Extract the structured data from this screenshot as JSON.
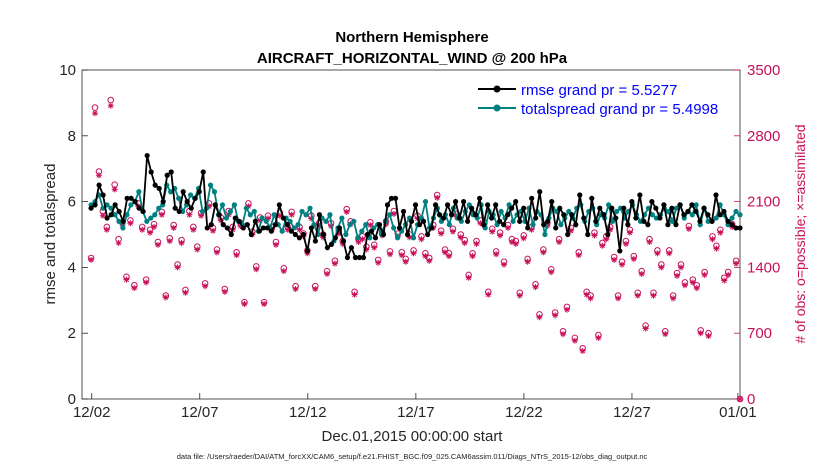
{
  "chart_data": {
    "type": "line",
    "title": "Northern Hemisphere",
    "subtitle": "AIRCRAFT_HORIZONTAL_WIND @ 200 hPa",
    "xlabel": "Dec.01,2015 00:00:00 start",
    "ylabel": "rmse and totalspread",
    "ylabel_right": "# of obs: o=possible; ×=assimilated",
    "xlim": [
      0.55,
      31.0
    ],
    "ylim": [
      0,
      10
    ],
    "ylim_right": [
      0,
      3500
    ],
    "x_ticks": [
      {
        "v": 1,
        "label": "12/02"
      },
      {
        "v": 6,
        "label": "12/07"
      },
      {
        "v": 11,
        "label": "12/12"
      },
      {
        "v": 16,
        "label": "12/17"
      },
      {
        "v": 21,
        "label": "12/22"
      },
      {
        "v": 26,
        "label": "12/27"
      },
      {
        "v": 30.9,
        "label": "01/01"
      }
    ],
    "y_ticks": [
      "0",
      "2",
      "4",
      "6",
      "8",
      "10"
    ],
    "y_ticks_right": [
      "0",
      "700",
      "1400",
      "2100",
      "2800",
      "3500"
    ],
    "legend": [
      "rmse grand pr = 5.5277",
      "totalspread grand pr = 5.4998"
    ],
    "footnote": "data file: /Users/raeder/DAI/ATM_forcXX/CAM6_setup/f.e21.FHIST_BGC.f09_025.CAM6assim.011/Diags_NTrS_2015-12/obs_diag_output.nc",
    "colors": {
      "rmse": "#000000",
      "spread": "#008080",
      "obs": "#c8105a"
    },
    "series": [
      {
        "name": "rmse",
        "values": [
          5.8,
          5.9,
          6.5,
          6.2,
          5.5,
          5.6,
          5.9,
          5.7,
          5.4,
          6.1,
          6.1,
          6.0,
          5.8,
          5.7,
          7.4,
          6.9,
          6.5,
          6.4,
          6.0,
          6.8,
          6.9,
          5.8,
          5.7,
          6.3,
          6.0,
          5.8,
          6.1,
          6.3,
          6.9,
          5.2,
          5.3,
          5.9,
          5.6,
          5.3,
          5.2,
          5.0,
          5.5,
          5.4,
          5.2,
          5.3,
          5.0,
          5.4,
          5.1,
          5.2,
          5.2,
          5.1,
          5.3,
          5.9,
          5.5,
          5.3,
          5.1,
          5.0,
          4.9,
          5.0,
          4.5,
          5.2,
          4.8,
          5.6,
          5.0,
          4.6,
          4.7,
          4.9,
          5.2,
          4.8,
          4.3,
          4.6,
          4.3,
          4.3,
          4.3,
          5.0,
          5.1,
          4.9,
          5.3,
          5.0,
          5.9,
          6.1,
          6.1,
          5.2,
          5.7,
          5.0,
          5.4,
          5.9,
          5.3,
          5.4,
          5.0,
          5.2,
          5.9,
          5.6,
          5.5,
          5.9,
          5.6,
          6.0,
          5.5,
          6.0,
          5.4,
          5.8,
          5.6,
          6.1,
          5.3,
          5.9,
          5.5,
          5.9,
          5.4,
          5.3,
          5.6,
          5.8,
          6.0,
          5.4,
          5.8,
          5.2,
          6.1,
          5.5,
          6.3,
          5.3,
          5.4,
          6.0,
          5.2,
          5.8,
          5.6,
          5.0,
          5.6,
          5.3,
          6.2,
          5.5,
          5.0,
          6.1,
          5.4,
          5.8,
          5.6,
          5.0,
          5.8,
          5.5,
          4.5,
          5.8,
          5.3,
          6.0,
          5.5,
          6.2,
          5.4,
          5.3,
          6.0,
          5.8,
          5.5,
          5.9,
          5.3,
          5.8,
          5.3,
          5.9,
          5.6,
          5.7,
          5.9,
          5.7,
          5.4,
          5.8,
          5.6,
          5.4,
          6.2,
          5.6,
          5.7,
          5.4,
          5.3,
          5.2,
          5.2
        ]
      },
      {
        "name": "totalspread",
        "values": [
          5.9,
          6.0,
          6.2,
          5.8,
          5.9,
          5.8,
          5.6,
          5.4,
          5.2,
          5.6,
          5.9,
          6.0,
          6.3,
          5.7,
          5.4,
          5.5,
          5.6,
          5.8,
          5.9,
          6.5,
          6.3,
          6.4,
          6.1,
          5.7,
          5.9,
          6.2,
          6.1,
          6.4,
          5.7,
          5.8,
          6.5,
          6.3,
          5.6,
          5.9,
          5.5,
          5.7,
          5.9,
          5.4,
          5.3,
          5.8,
          5.6,
          5.7,
          5.1,
          5.5,
          5.4,
          5.2,
          5.6,
          5.3,
          5.1,
          5.5,
          5.4,
          5.2,
          5.3,
          5.7,
          5.6,
          5.8,
          5.3,
          5.0,
          5.5,
          5.4,
          5.6,
          4.8,
          5.2,
          5.5,
          5.0,
          5.3,
          5.4,
          4.9,
          5.1,
          5.3,
          4.9,
          5.2,
          5.3,
          5.0,
          5.4,
          5.6,
          5.2,
          4.9,
          5.1,
          5.3,
          5.5,
          4.9,
          5.3,
          5.5,
          6.0,
          5.2,
          5.5,
          5.8,
          5.4,
          5.6,
          5.3,
          5.8,
          5.5,
          5.4,
          5.7,
          5.9,
          5.6,
          5.5,
          5.9,
          5.2,
          5.7,
          5.6,
          5.3,
          5.7,
          5.5,
          5.9,
          5.4,
          5.6,
          5.7,
          5.4,
          5.8,
          5.3,
          5.7,
          5.6,
          5.0,
          5.5,
          5.8,
          5.7,
          5.3,
          5.5,
          5.7,
          5.5,
          5.8,
          5.9,
          5.4,
          5.7,
          5.8,
          5.3,
          5.6,
          5.5,
          5.9,
          5.4,
          5.7,
          5.8,
          5.5,
          5.7,
          5.9,
          5.6,
          5.4,
          5.6,
          5.8,
          5.6,
          5.5,
          5.6,
          5.8,
          5.7,
          5.4,
          5.8,
          5.9,
          5.5,
          5.7,
          5.6,
          5.9,
          5.3,
          5.8,
          5.4,
          5.4,
          5.5,
          5.9,
          5.6,
          5.3,
          5.5,
          5.7,
          5.6
        ]
      },
      {
        "name": "obs_possible",
        "axis": "right",
        "values": [
          1500,
          3100,
          2420,
          2000,
          1830,
          3180,
          2280,
          1700,
          1880,
          1300,
          1900,
          1210,
          2080,
          1830,
          1270,
          1800,
          1860,
          1670,
          1990,
          1100,
          1710,
          1850,
          1430,
          1690,
          1160,
          2000,
          1830,
          1620,
          1980,
          1230,
          2080,
          1820,
          1590,
          1930,
          1170,
          2000,
          1830,
          1560,
          1870,
          1030,
          2080,
          1780,
          1410,
          1930,
          1030,
          1950,
          1830,
          1670,
          1980,
          1390,
          1830,
          1990,
          1200,
          1830,
          1760,
          1580,
          1950,
          1200,
          1870,
          1750,
          1360,
          1870,
          1470,
          1790,
          1680,
          2020,
          1890,
          1140,
          1700,
          1730,
          1620,
          1880,
          1640,
          1480,
          1770,
          1890,
          1570,
          2000,
          1760,
          1560,
          1490,
          1750,
          1580,
          1950,
          1730,
          1550,
          1500,
          1850,
          2170,
          1790,
          1590,
          1550,
          1810,
          1970,
          1750,
          1690,
          1320,
          1550,
          1680,
          1900,
          1870,
          1140,
          1810,
          1570,
          1770,
          1460,
          1850,
          1700,
          1680,
          1130,
          1740,
          1490,
          1830,
          1220,
          900,
          1590,
          1870,
          1380,
          920,
          1700,
          720,
          980,
          1820,
          650,
          1560,
          540,
          1140,
          1100,
          1770,
          680,
          1660,
          1730,
          1830,
          1510,
          1100,
          1460,
          1680,
          1800,
          1520,
          1130,
          1360,
          780,
          1700,
          1130,
          1580,
          1430,
          720,
          1580,
          1100,
          1340,
          1430,
          1240,
          1840,
          1270,
          1210,
          730,
          1350,
          700,
          1730,
          1630,
          1800,
          1290,
          1350,
          1860,
          1470,
          0
        ]
      },
      {
        "name": "obs_assimilated",
        "axis": "right",
        "values": [
          1480,
          3040,
          2380,
          1950,
          1800,
          3120,
          2230,
          1660,
          1850,
          1270,
          1870,
          1180,
          2050,
          1800,
          1240,
          1770,
          1830,
          1640,
          1960,
          1080,
          1680,
          1820,
          1400,
          1660,
          1130,
          1960,
          1800,
          1590,
          1950,
          1200,
          2050,
          1790,
          1560,
          1900,
          1140,
          1960,
          1800,
          1530,
          1840,
          1010,
          2050,
          1750,
          1380,
          1900,
          1010,
          1920,
          1800,
          1640,
          1950,
          1360,
          1800,
          1960,
          1170,
          1800,
          1730,
          1550,
          1920,
          1170,
          1840,
          1720,
          1330,
          1840,
          1440,
          1760,
          1650,
          1990,
          1860,
          1110,
          1670,
          1700,
          1590,
          1850,
          1610,
          1450,
          1740,
          1860,
          1540,
          1970,
          1730,
          1530,
          1460,
          1720,
          1550,
          1920,
          1700,
          1520,
          1470,
          1820,
          2140,
          1760,
          1560,
          1520,
          1780,
          1940,
          1720,
          1660,
          1290,
          1520,
          1650,
          1870,
          1840,
          1110,
          1780,
          1540,
          1740,
          1430,
          1820,
          1670,
          1650,
          1100,
          1710,
          1460,
          1800,
          1190,
          870,
          1560,
          1840,
          1350,
          890,
          1670,
          690,
          950,
          1790,
          620,
          1530,
          510,
          1110,
          1070,
          1740,
          650,
          1630,
          1700,
          1800,
          1480,
          1070,
          1430,
          1650,
          1770,
          1490,
          1100,
          1330,
          750,
          1670,
          1100,
          1550,
          1400,
          690,
          1550,
          1070,
          1310,
          1400,
          1210,
          1810,
          1240,
          1180,
          700,
          1320,
          670,
          1700,
          1600,
          1770,
          1260,
          1320,
          1830,
          1440,
          0
        ]
      }
    ]
  }
}
